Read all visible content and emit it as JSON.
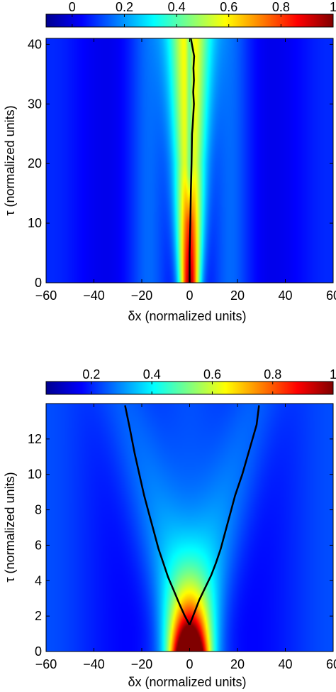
{
  "chart_data": [
    {
      "type": "heatmap",
      "title": "",
      "xlabel": "δx  (normalized units)",
      "ylabel": "τ (normalized units)",
      "xlim": [
        -60,
        60
      ],
      "ylim": [
        0,
        41
      ],
      "x_ticks": [
        "−60",
        "−40",
        "−20",
        "0",
        "20",
        "40",
        "60"
      ],
      "y_ticks": [
        "0",
        "10",
        "20",
        "30",
        "40"
      ],
      "colorbar": {
        "range": [
          -0.1,
          1.0
        ],
        "ticks": [
          "0",
          "0.2",
          "0.4",
          "0.6",
          "0.8",
          "1"
        ],
        "colormap": "jet"
      },
      "curve": {
        "x": [
          0,
          0,
          0.3,
          0.5,
          0.8,
          1.0,
          1.2,
          1.5,
          1.8,
          1.5,
          1.8,
          1.6,
          1.9,
          0.5
        ],
        "y": [
          0,
          5,
          10,
          15,
          20,
          25,
          26,
          28,
          30,
          32,
          34,
          36,
          38,
          41
        ]
      }
    },
    {
      "type": "heatmap",
      "title": "",
      "xlabel": "δx  (normalized units)",
      "ylabel": "τ (normalized units)",
      "xlim": [
        -60,
        60
      ],
      "ylim": [
        0,
        14
      ],
      "x_ticks": [
        "−60",
        "−40",
        "−20",
        "0",
        "20",
        "40",
        "60"
      ],
      "y_ticks": [
        "0",
        "2",
        "4",
        "6",
        "8",
        "10",
        "12"
      ],
      "colorbar": {
        "range": [
          0.05,
          1.0
        ],
        "ticks": [
          "0.2",
          "0.4",
          "0.6",
          "0.8",
          "1"
        ],
        "colormap": "jet"
      },
      "curve_left": {
        "x": [
          0,
          -2,
          -4,
          -6.5,
          -9,
          -11,
          -13,
          -15,
          -17,
          -19,
          -21,
          -23,
          -25,
          -27
        ],
        "y": [
          1.5,
          2,
          2.6,
          3.4,
          4.2,
          5,
          5.8,
          6.8,
          7.8,
          8.8,
          10,
          11.2,
          12.6,
          13.9
        ]
      },
      "curve_right": {
        "x": [
          0,
          2,
          4,
          6.5,
          9,
          11,
          13,
          15,
          17,
          19,
          22,
          25,
          28,
          29
        ],
        "y": [
          1.5,
          2.2,
          2.9,
          3.6,
          4.3,
          5,
          5.8,
          6.8,
          7.8,
          8.8,
          10,
          11.4,
          12.8,
          13.9
        ]
      }
    }
  ]
}
